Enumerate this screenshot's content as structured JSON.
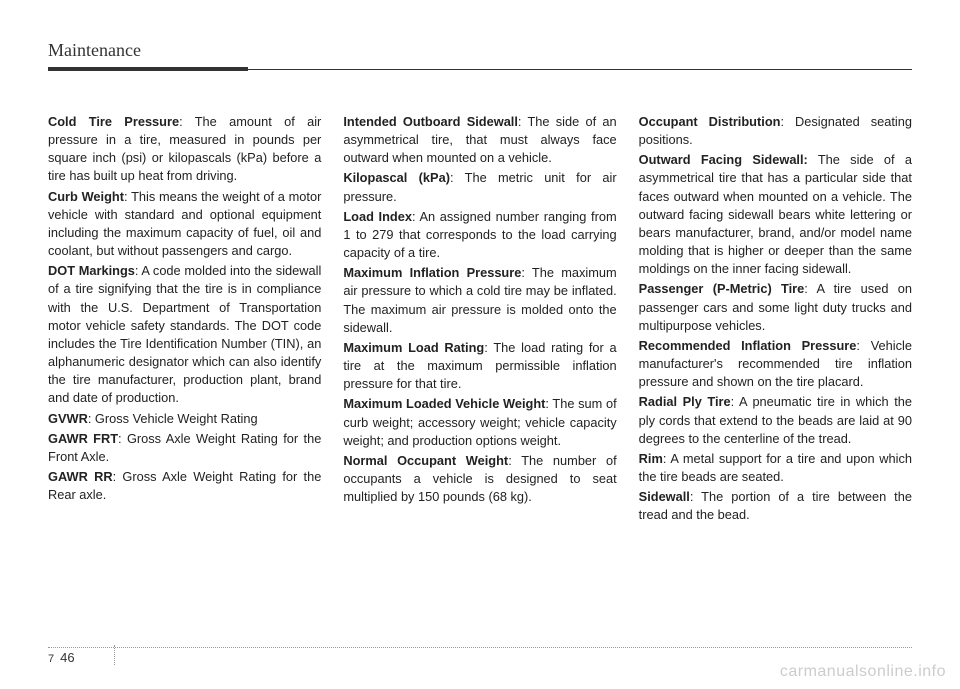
{
  "header": {
    "title": "Maintenance"
  },
  "footer": {
    "chapter": "7",
    "page": "46"
  },
  "watermark": "carmanualsonline.info",
  "columns": [
    [
      {
        "term": "Cold Tire Pressure",
        "def": ": The amount of air pressure in a tire, measured in pounds per square inch (psi) or kilopascals (kPa) before a tire has built up heat from driving."
      },
      {
        "term": "Curb Weight",
        "def": ": This means the weight of a motor vehicle with standard and optional equipment including the maximum capacity of fuel, oil and coolant, but without passengers and cargo."
      },
      {
        "term": "DOT Markings",
        "def": ": A code molded into the sidewall of a tire signifying that the tire is in compliance with the U.S. Department of Transportation motor vehicle safety standards. The DOT code includes the Tire Identification Number (TIN), an alphanumeric designator which can also identify the tire manufacturer, production plant, brand and date of production."
      },
      {
        "term": "GVWR",
        "def": ": Gross Vehicle Weight Rating"
      },
      {
        "term": "GAWR FRT",
        "def": ": Gross Axle Weight Rating for the Front Axle."
      },
      {
        "term": "GAWR RR",
        "def": ": Gross Axle Weight Rating for the Rear axle."
      }
    ],
    [
      {
        "term": "Intended Outboard Sidewall",
        "def": ": The side of an asymmetrical tire, that must always face outward when mounted on a vehicle."
      },
      {
        "term": "Kilopascal (kPa)",
        "def": ": The metric unit for air pressure."
      },
      {
        "term": "Load Index",
        "def": ": An assigned number ranging from 1 to 279 that corresponds to the load carrying capacity of a tire."
      },
      {
        "term": "Maximum Inflation Pressure",
        "def": ": The maximum air pressure to which a cold tire may be inflated. The maximum air pressure is molded onto the sidewall."
      },
      {
        "term": "Maximum Load Rating",
        "def": ": The load rating for a tire at the maximum permissible inflation pressure for that tire."
      },
      {
        "term": "Maximum Loaded Vehicle Weight",
        "def": ": The sum of curb weight; accessory weight; vehicle capacity weight; and production options weight."
      },
      {
        "term": "Normal Occupant Weight",
        "def": ": The number of occupants a vehicle is designed to seat multiplied by 150 pounds (68 kg)."
      }
    ],
    [
      {
        "term": "Occupant Distribution",
        "def": ": Designated seating positions."
      },
      {
        "term": "Outward Facing Sidewall:",
        "def": " The side of a asymmetrical tire that has a particular side that faces outward when mounted on a vehicle. The outward facing sidewall bears white lettering or bears manufacturer, brand, and/or model name molding that is higher or deeper than the same moldings on the inner facing sidewall."
      },
      {
        "term": "Passenger (P-Metric) Tire",
        "def": ": A tire used on passenger cars and some light duty trucks and multipurpose vehicles."
      },
      {
        "term": "Recommended Inflation Pressure",
        "def": ": Vehicle manufacturer's recommended tire inflation pressure and shown on the tire placard."
      },
      {
        "term": "Radial Ply Tire",
        "def": ": A pneumatic tire in which the ply cords that extend to the beads are laid at 90 degrees to the centerline of the tread."
      },
      {
        "term": "Rim",
        "def": ": A metal support for a tire and upon which the tire beads are seated."
      },
      {
        "term": "Sidewall",
        "def": ": The portion of a tire between the tread and the bead."
      }
    ]
  ]
}
